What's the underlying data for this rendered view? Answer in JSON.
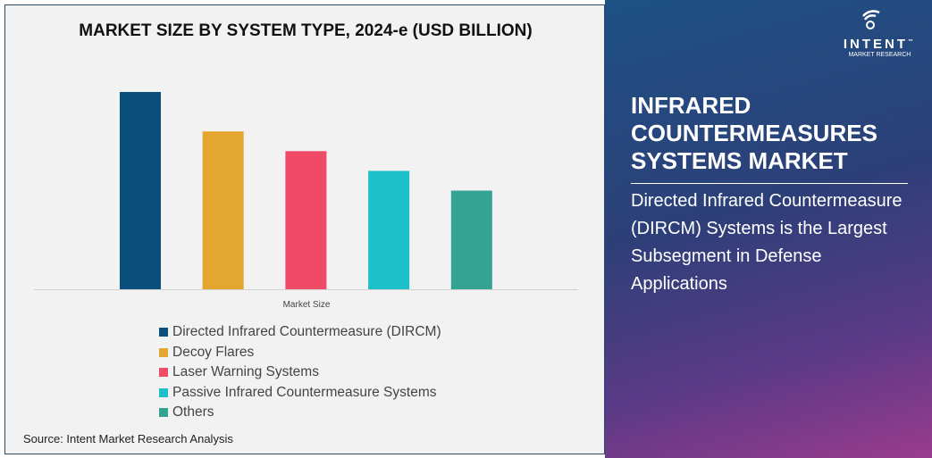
{
  "chart_data": {
    "type": "bar",
    "title": "MARKET SIZE BY SYSTEM TYPE, 2024-e (USD BILLION)",
    "xlabel": "Market Size",
    "categories": [
      "Directed Infrared Countermeasure (DIRCM)",
      "Decoy Flares",
      "Laser Warning Systems",
      "Passive Infrared Countermeasure Systems",
      "Others"
    ],
    "values": [
      10,
      8,
      7,
      6,
      5
    ],
    "colors": [
      "#0b4f7c",
      "#e3a72f",
      "#ef4a66",
      "#1dbfc8",
      "#35a394"
    ],
    "grid": false,
    "legend": "bottom"
  },
  "source": "Source: Intent Market Research Analysis",
  "logo": {
    "name": "INTENT",
    "sub": "MARKET RESEARCH",
    "tm": "™"
  },
  "side": {
    "title": "INFRARED COUNTERMEASURES SYSTEMS MARKET",
    "subtitle": "Directed Infrared Countermeasure (DIRCM) Systems is the Largest Subsegment in Defense Applications"
  }
}
